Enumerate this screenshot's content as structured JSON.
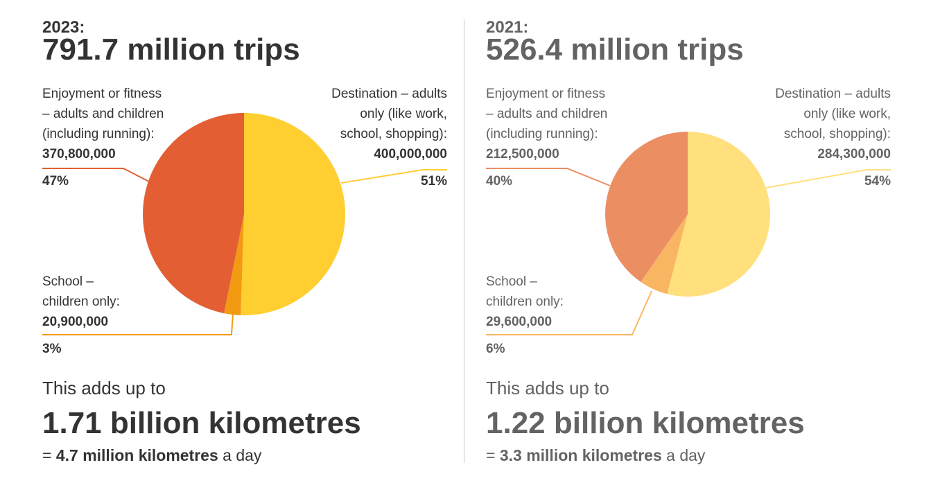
{
  "panels": [
    {
      "year": "2023:",
      "total": "791.7 million trips",
      "adds_up_text": "This adds up to",
      "distance": "1.71 billion kilometres",
      "per_day_prefix": "= ",
      "per_day_value": "4.7 million kilometres",
      "per_day_suffix": " a day",
      "text_color": "#333333",
      "segments": [
        {
          "name": "Destination",
          "label": [
            "Destination – adults",
            "only (like work,",
            "school, shopping):"
          ],
          "value_text": "400,000,000",
          "pct_text": "51%",
          "color": "#FFCE31"
        },
        {
          "name": "School",
          "label": [
            "School –",
            "children only:"
          ],
          "value_text": "20,900,000",
          "pct_text": "3%",
          "color": "#F39A13"
        },
        {
          "name": "Enjoyment",
          "label": [
            "Enjoyment or fitness",
            "– adults and children",
            "(including running):"
          ],
          "value_text": "370,800,000",
          "pct_text": "47%",
          "color": "#E35F33"
        }
      ]
    },
    {
      "year": "2021:",
      "total": "526.4 million trips",
      "adds_up_text": "This adds up to",
      "distance": "1.22 billion kilometres",
      "per_day_prefix": "= ",
      "per_day_value": "3.3 million kilometres",
      "per_day_suffix": " a day",
      "text_color": "#636363",
      "segments": [
        {
          "name": "Destination",
          "label": [
            "Destination – adults",
            "only (like work,",
            "school, shopping):"
          ],
          "value_text": "284,300,000",
          "pct_text": "54%",
          "color": "#FFE07D"
        },
        {
          "name": "School",
          "label": [
            "School –",
            "children only:"
          ],
          "value_text": "29,600,000",
          "pct_text": "6%",
          "color": "#F8B662"
        },
        {
          "name": "Enjoyment",
          "label": [
            "Enjoyment or fitness",
            "– adults and children",
            "(including running):"
          ],
          "value_text": "212,500,000",
          "pct_text": "40%",
          "color": "#EB8E62"
        }
      ]
    }
  ],
  "chart_data": [
    {
      "type": "pie",
      "title": "2023: 791.7 million trips",
      "categories": [
        "Destination – adults only (like work, school, shopping)",
        "School – children only",
        "Enjoyment or fitness – adults and children (including running)"
      ],
      "values": [
        400000000,
        20900000,
        370800000
      ],
      "percentages": [
        51,
        3,
        47
      ],
      "colors": [
        "#FFCE31",
        "#F39A13",
        "#E35F33"
      ]
    },
    {
      "type": "pie",
      "title": "2021: 526.4 million trips",
      "categories": [
        "Destination – adults only (like work, school, shopping)",
        "School – children only",
        "Enjoyment or fitness – adults and children (including running)"
      ],
      "values": [
        284300000,
        29600000,
        212500000
      ],
      "percentages": [
        54,
        6,
        40
      ],
      "colors": [
        "#FFE07D",
        "#F8B662",
        "#EB8E62"
      ]
    }
  ]
}
